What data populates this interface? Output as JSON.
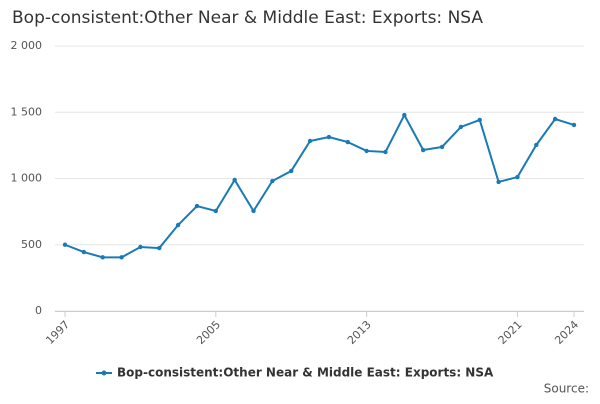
{
  "chart_data": {
    "type": "line",
    "title": "Bop-consistent:Other Near & Middle East: Exports: NSA",
    "x": [
      1997,
      1998,
      1999,
      2000,
      2001,
      2002,
      2003,
      2004,
      2005,
      2006,
      2007,
      2008,
      2009,
      2010,
      2011,
      2012,
      2013,
      2014,
      2015,
      2016,
      2017,
      2018,
      2019,
      2020,
      2021,
      2022,
      2023,
      2024
    ],
    "series": [
      {
        "name": "Bop-consistent:Other Near & Middle East: Exports: NSA",
        "color": "#1a7ab5",
        "values": [
          500,
          445,
          405,
          405,
          483,
          475,
          649,
          792,
          755,
          989,
          755,
          981,
          1057,
          1283,
          1313,
          1275,
          1208,
          1200,
          1479,
          1215,
          1238,
          1389,
          1442,
          974,
          1011,
          1253,
          1449,
          1404
        ]
      }
    ],
    "xlim": [
      1997,
      2024
    ],
    "xticks": [
      1997,
      2005,
      2013,
      2021,
      2024
    ],
    "ylim": [
      0,
      2000
    ],
    "yticks": [
      0,
      500,
      {
        "value": 1000,
        "label": "1 000"
      },
      {
        "value": 1500,
        "label": "1 500"
      },
      {
        "value": 2000,
        "label": "2 000"
      }
    ],
    "grid": true,
    "source": "Source:"
  }
}
